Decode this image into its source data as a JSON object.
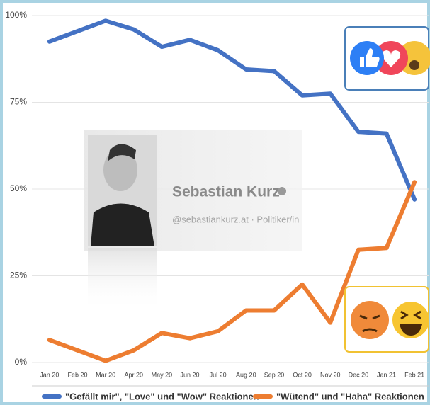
{
  "chart_data": {
    "type": "line",
    "annotations": [
      "Sebastian Kurz",
      "@sebastiankurz.at · Politiker/in"
    ],
    "categories": [
      "Jan 20",
      "Feb 20",
      "Mar 20",
      "Apr 20",
      "May 20",
      "Jun 20",
      "Jul 20",
      "Aug 20",
      "Sep 20",
      "Oct 20",
      "Nov 20",
      "Dec 20",
      "Jan 21",
      "Feb 21"
    ],
    "series": [
      {
        "name": "\"Gefällt mir\", \"Love\" und \"Wow\" Reaktionen",
        "color": "#4472c4",
        "values": [
          92.5,
          95.5,
          98.5,
          96,
          91,
          93,
          90,
          84.5,
          84,
          77,
          77.5,
          66.5,
          66,
          47
        ]
      },
      {
        "name": "\"Wütend\" und \"Haha\" Reaktionen",
        "color": "#ed7d31",
        "values": [
          6.5,
          3.5,
          0.5,
          3.5,
          8.5,
          7,
          9,
          15,
          15,
          22.5,
          11.5,
          32.5,
          33,
          52
        ]
      }
    ],
    "ylim": [
      0,
      100
    ],
    "yticks": [
      {
        "value": 0,
        "label": "0%"
      },
      {
        "value": 25,
        "label": "25%"
      },
      {
        "value": 50,
        "label": "50%"
      },
      {
        "value": 75,
        "label": "75%"
      },
      {
        "value": 100,
        "label": "100%"
      }
    ],
    "grid": true
  }
}
